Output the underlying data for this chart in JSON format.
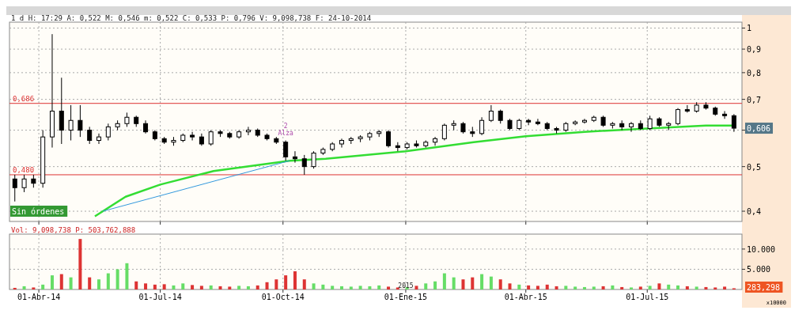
{
  "chart_data": [
    {
      "type": "candlestick",
      "title": "1 d H: 17:29 A: 0,522 M: 0,546 m: 0,522 C: 0,533 P: 0,796 V: 9,098,738 F: 24-10-2014",
      "log": true,
      "grid": true,
      "tick_labels": "y",
      "xlim": [
        "2014-03-10",
        "2015-09-10"
      ],
      "ylim": [
        0.38,
        1.03
      ],
      "yticks": [
        {
          "value": 0.4,
          "label": "0,4"
        },
        {
          "value": 0.5,
          "label": "0,5"
        },
        {
          "value": 0.6,
          "label": null
        },
        {
          "value": 0.7,
          "label": "0,7"
        },
        {
          "value": 0.8,
          "label": "0,8"
        },
        {
          "value": 0.9,
          "label": "0,9"
        },
        1
      ],
      "xticks": [
        {
          "value": "2014-04-01",
          "label": null
        },
        {
          "value": "2014-07-01",
          "label": null
        },
        {
          "value": "2014-10-01",
          "label": null
        },
        {
          "value": "2015-01-01",
          "label": null
        },
        {
          "value": "2015-04-01",
          "label": null
        },
        {
          "value": "2015-07-01",
          "label": null
        }
      ],
      "x": [
        "2014-03-14",
        "2014-03-21",
        "2014-03-28",
        "2014-04-04",
        "2014-04-11",
        "2014-04-18",
        "2014-04-25",
        "2014-05-02",
        "2014-05-09",
        "2014-05-16",
        "2014-05-23",
        "2014-05-30",
        "2014-06-06",
        "2014-06-13",
        "2014-06-20",
        "2014-06-27",
        "2014-07-04",
        "2014-07-11",
        "2014-07-18",
        "2014-07-25",
        "2014-08-01",
        "2014-08-08",
        "2014-08-15",
        "2014-08-22",
        "2014-08-29",
        "2014-09-05",
        "2014-09-12",
        "2014-09-19",
        "2014-09-26",
        "2014-10-03",
        "2014-10-10",
        "2014-10-17",
        "2014-10-24",
        "2014-10-31",
        "2014-11-07",
        "2014-11-14",
        "2014-11-21",
        "2014-11-28",
        "2014-12-05",
        "2014-12-12",
        "2014-12-19",
        "2014-12-26",
        "2015-01-02",
        "2015-01-09",
        "2015-01-16",
        "2015-01-23",
        "2015-01-30",
        "2015-02-06",
        "2015-02-13",
        "2015-02-20",
        "2015-02-27",
        "2015-03-06",
        "2015-03-13",
        "2015-03-20",
        "2015-03-27",
        "2015-04-03",
        "2015-04-10",
        "2015-04-17",
        "2015-04-24",
        "2015-05-01",
        "2015-05-08",
        "2015-05-15",
        "2015-05-22",
        "2015-05-29",
        "2015-06-05",
        "2015-06-12",
        "2015-06-19",
        "2015-06-26",
        "2015-07-03",
        "2015-07-10",
        "2015-07-17",
        "2015-07-24",
        "2015-07-31",
        "2015-08-07",
        "2015-08-14",
        "2015-08-21",
        "2015-08-28",
        "2015-09-04"
      ],
      "series": [
        {
          "color": "#000000",
          "ohlc": [
            [
              0.47,
              0.48,
              0.42,
              0.45
            ],
            [
              0.45,
              0.48,
              0.44,
              0.47
            ],
            [
              0.47,
              0.48,
              0.45,
              0.46
            ],
            [
              0.46,
              0.6,
              0.45,
              0.58
            ],
            [
              0.58,
              0.97,
              0.55,
              0.66
            ],
            [
              0.66,
              0.78,
              0.56,
              0.6
            ],
            [
              0.6,
              0.68,
              0.57,
              0.63
            ],
            [
              0.63,
              0.68,
              0.58,
              0.6
            ],
            [
              0.6,
              0.61,
              0.56,
              0.57
            ],
            [
              0.57,
              0.59,
              0.56,
              0.58
            ],
            [
              0.58,
              0.62,
              0.57,
              0.61
            ],
            [
              0.61,
              0.63,
              0.6,
              0.62
            ],
            [
              0.62,
              0.655,
              0.61,
              0.64
            ],
            [
              0.64,
              0.645,
              0.61,
              0.62
            ],
            [
              0.62,
              0.63,
              0.59,
              0.595
            ],
            [
              0.595,
              0.6,
              0.57,
              0.575
            ],
            [
              0.575,
              0.58,
              0.56,
              0.565
            ],
            [
              0.565,
              0.58,
              0.555,
              0.57
            ],
            [
              0.57,
              0.59,
              0.565,
              0.585
            ],
            [
              0.585,
              0.595,
              0.57,
              0.58
            ],
            [
              0.58,
              0.59,
              0.555,
              0.56
            ],
            [
              0.56,
              0.6,
              0.555,
              0.595
            ],
            [
              0.595,
              0.6,
              0.58,
              0.59
            ],
            [
              0.59,
              0.595,
              0.575,
              0.58
            ],
            [
              0.58,
              0.6,
              0.575,
              0.595
            ],
            [
              0.595,
              0.61,
              0.585,
              0.6
            ],
            [
              0.6,
              0.605,
              0.58,
              0.585
            ],
            [
              0.585,
              0.59,
              0.57,
              0.575
            ],
            [
              0.575,
              0.58,
              0.56,
              0.565
            ],
            [
              0.565,
              0.57,
              0.515,
              0.525
            ],
            [
              0.525,
              0.54,
              0.51,
              0.52
            ],
            [
              0.52,
              0.53,
              0.48,
              0.5
            ],
            [
              0.5,
              0.54,
              0.495,
              0.535
            ],
            [
              0.535,
              0.55,
              0.53,
              0.545
            ],
            [
              0.545,
              0.565,
              0.54,
              0.56
            ],
            [
              0.56,
              0.575,
              0.55,
              0.57
            ],
            [
              0.57,
              0.58,
              0.56,
              0.575
            ],
            [
              0.575,
              0.585,
              0.565,
              0.58
            ],
            [
              0.58,
              0.595,
              0.57,
              0.59
            ],
            [
              0.59,
              0.6,
              0.58,
              0.595
            ],
            [
              0.595,
              0.6,
              0.55,
              0.555
            ],
            [
              0.555,
              0.565,
              0.54,
              0.55
            ],
            [
              0.55,
              0.565,
              0.545,
              0.56
            ],
            [
              0.56,
              0.57,
              0.55,
              0.555
            ],
            [
              0.555,
              0.57,
              0.55,
              0.565
            ],
            [
              0.565,
              0.58,
              0.555,
              0.575
            ],
            [
              0.575,
              0.62,
              0.57,
              0.615
            ],
            [
              0.615,
              0.63,
              0.6,
              0.62
            ],
            [
              0.62,
              0.625,
              0.59,
              0.595
            ],
            [
              0.595,
              0.61,
              0.58,
              0.59
            ],
            [
              0.59,
              0.64,
              0.585,
              0.63
            ],
            [
              0.63,
              0.68,
              0.625,
              0.66
            ],
            [
              0.66,
              0.665,
              0.62,
              0.63
            ],
            [
              0.63,
              0.635,
              0.6,
              0.605
            ],
            [
              0.605,
              0.635,
              0.6,
              0.63
            ],
            [
              0.63,
              0.635,
              0.615,
              0.625
            ],
            [
              0.625,
              0.635,
              0.615,
              0.62
            ],
            [
              0.62,
              0.625,
              0.6,
              0.605
            ],
            [
              0.605,
              0.61,
              0.59,
              0.6
            ],
            [
              0.6,
              0.625,
              0.595,
              0.62
            ],
            [
              0.62,
              0.63,
              0.615,
              0.625
            ],
            [
              0.625,
              0.635,
              0.62,
              0.63
            ],
            [
              0.63,
              0.645,
              0.625,
              0.64
            ],
            [
              0.64,
              0.645,
              0.61,
              0.615
            ],
            [
              0.615,
              0.625,
              0.605,
              0.62
            ],
            [
              0.62,
              0.63,
              0.6,
              0.61
            ],
            [
              0.61,
              0.625,
              0.595,
              0.62
            ],
            [
              0.62,
              0.63,
              0.6,
              0.605
            ],
            [
              0.605,
              0.645,
              0.6,
              0.635
            ],
            [
              0.635,
              0.64,
              0.61,
              0.615
            ],
            [
              0.615,
              0.625,
              0.6,
              0.62
            ],
            [
              0.62,
              0.67,
              0.615,
              0.665
            ],
            [
              0.665,
              0.68,
              0.655,
              0.66
            ],
            [
              0.66,
              0.69,
              0.655,
              0.68
            ],
            [
              0.68,
              0.69,
              0.665,
              0.67
            ],
            [
              0.67,
              0.675,
              0.645,
              0.65
            ],
            [
              0.65,
              0.66,
              0.635,
              0.645
            ],
            [
              0.645,
              0.65,
              0.595,
              0.606
            ]
          ]
        },
        {
          "type": "line",
          "color": "#33dd33",
          "x": [
            "2014-05-13",
            "2014-06-05",
            "2014-07-01",
            "2014-08-10",
            "2014-10-06",
            "2014-11-02",
            "2015-01-01",
            "2015-02-21",
            "2015-04-01",
            "2015-05-15",
            "2015-07-01",
            "2015-08-14",
            "2015-09-04"
          ],
          "values": [
            0.39,
            0.43,
            0.457,
            0.489,
            0.515,
            0.52,
            0.54,
            0.565,
            0.582,
            0.595,
            0.605,
            0.614,
            0.614
          ]
        },
        {
          "type": "line",
          "color": "#3399dd",
          "x": [
            "2014-05-19",
            "2014-10-06"
          ],
          "values": [
            0.4,
            0.515
          ]
        }
      ],
      "ref_lines": [
        {
          "axis": "y",
          "value": 0.686,
          "label": "0,686",
          "color": "#dd3333"
        },
        {
          "axis": "y",
          "value": 0.48,
          "label": "0,480",
          "color": "#dd3333"
        }
      ],
      "annotations": [
        "Sin órdenes",
        "2",
        "Alza",
        {
          "text": "0,606",
          "x": "2015-09-04",
          "y": 0.606
        }
      ]
    },
    {
      "type": "bar",
      "title": "Vol: 9,098,738 P: 503,762,888",
      "grid": true,
      "xlim": [
        "2014-03-10",
        "2015-09-10"
      ],
      "ylim": [
        0,
        13700
      ],
      "yticks": [
        {
          "value": 5000,
          "label": "5.000"
        },
        {
          "value": 10000,
          "label": "10.000"
        }
      ],
      "xticks": [
        {
          "value": "2014-04-01",
          "label": "01-Abr-14"
        },
        {
          "value": "2014-07-01",
          "label": "01-Jul-14"
        },
        {
          "value": "2014-10-01",
          "label": "01-Oct-14"
        },
        {
          "value": "2015-01-01",
          "label": "01-Ene-15"
        },
        {
          "value": "2015-04-01",
          "label": "01-Abr-15"
        },
        {
          "value": "2015-07-01",
          "label": "01-Jul-15"
        }
      ],
      "x": [
        "2014-03-14",
        "2014-03-21",
        "2014-03-28",
        "2014-04-04",
        "2014-04-11",
        "2014-04-18",
        "2014-04-25",
        "2014-05-02",
        "2014-05-09",
        "2014-05-16",
        "2014-05-23",
        "2014-05-30",
        "2014-06-06",
        "2014-06-13",
        "2014-06-20",
        "2014-06-27",
        "2014-07-04",
        "2014-07-11",
        "2014-07-18",
        "2014-07-25",
        "2014-08-01",
        "2014-08-08",
        "2014-08-15",
        "2014-08-22",
        "2014-08-29",
        "2014-09-05",
        "2014-09-12",
        "2014-09-19",
        "2014-09-26",
        "2014-10-03",
        "2014-10-10",
        "2014-10-17",
        "2014-10-24",
        "2014-10-31",
        "2014-11-07",
        "2014-11-14",
        "2014-11-21",
        "2014-11-28",
        "2014-12-05",
        "2014-12-12",
        "2014-12-19",
        "2014-12-26",
        "2015-01-02",
        "2015-01-09",
        "2015-01-16",
        "2015-01-23",
        "2015-01-30",
        "2015-02-06",
        "2015-02-13",
        "2015-02-20",
        "2015-02-27",
        "2015-03-06",
        "2015-03-13",
        "2015-03-20",
        "2015-03-27",
        "2015-04-03",
        "2015-04-10",
        "2015-04-17",
        "2015-04-24",
        "2015-05-01",
        "2015-05-08",
        "2015-05-15",
        "2015-05-22",
        "2015-05-29",
        "2015-06-05",
        "2015-06-12",
        "2015-06-19",
        "2015-06-26",
        "2015-07-03",
        "2015-07-10",
        "2015-07-17",
        "2015-07-24",
        "2015-07-31",
        "2015-08-07",
        "2015-08-14",
        "2015-08-21",
        "2015-08-28",
        "2015-09-04"
      ],
      "values": [
        400,
        800,
        500,
        1200,
        3500,
        3800,
        3000,
        12500,
        3000,
        2500,
        4000,
        5000,
        6500,
        2000,
        1500,
        1200,
        1300,
        1000,
        1500,
        1100,
        900,
        1000,
        800,
        700,
        900,
        800,
        1000,
        1800,
        2500,
        3500,
        4500,
        2500,
        1500,
        1200,
        900,
        800,
        700,
        900,
        800,
        1000,
        700,
        500,
        600,
        900,
        1500,
        2000,
        4000,
        3000,
        2500,
        3000,
        3800,
        3200,
        2500,
        1500,
        1200,
        1000,
        900,
        1200,
        800,
        900,
        700,
        600,
        700,
        800,
        1000,
        600,
        500,
        700,
        900,
        1500,
        1200,
        1000,
        800,
        700,
        600,
        500,
        700,
        300
      ],
      "colors": [
        "#dd3333",
        "#66dd66",
        "#dd3333",
        "#66dd66",
        "#66dd66",
        "#dd3333",
        "#66dd66",
        "#dd3333",
        "#dd3333",
        "#66dd66",
        "#66dd66",
        "#66dd66",
        "#66dd66",
        "#dd3333",
        "#dd3333",
        "#dd3333",
        "#dd3333",
        "#66dd66",
        "#66dd66",
        "#dd3333",
        "#dd3333",
        "#66dd66",
        "#dd3333",
        "#dd3333",
        "#66dd66",
        "#66dd66",
        "#dd3333",
        "#dd3333",
        "#dd3333",
        "#dd3333",
        "#dd3333",
        "#dd3333",
        "#66dd66",
        "#66dd66",
        "#66dd66",
        "#66dd66",
        "#66dd66",
        "#66dd66",
        "#66dd66",
        "#66dd66",
        "#dd3333",
        "#dd3333",
        "#66dd66",
        "#dd3333",
        "#66dd66",
        "#66dd66",
        "#66dd66",
        "#66dd66",
        "#dd3333",
        "#dd3333",
        "#66dd66",
        "#66dd66",
        "#dd3333",
        "#dd3333",
        "#66dd66",
        "#dd3333",
        "#dd3333",
        "#dd3333",
        "#dd3333",
        "#66dd66",
        "#66dd66",
        "#66dd66",
        "#66dd66",
        "#dd3333",
        "#66dd66",
        "#dd3333",
        "#66dd66",
        "#dd3333",
        "#66dd66",
        "#dd3333",
        "#66dd66",
        "#66dd66",
        "#dd3333",
        "#66dd66",
        "#dd3333",
        "#dd3333",
        "#dd3333",
        "#dd3333"
      ],
      "annotations": [
        {
          "text": "2015",
          "x": "2015-01-01",
          "y": 0
        },
        "283,298",
        "x10000"
      ]
    }
  ]
}
